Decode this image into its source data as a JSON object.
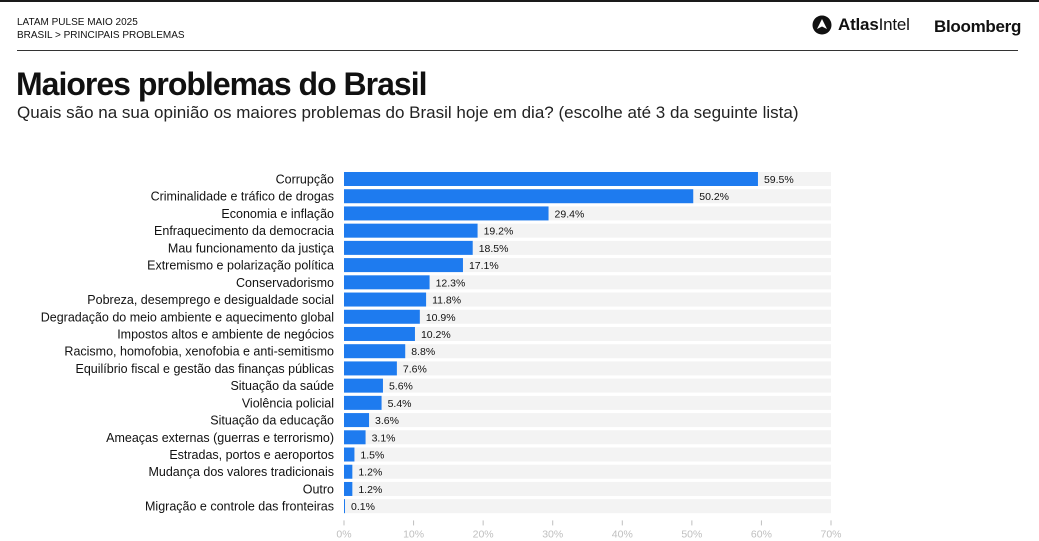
{
  "header": {
    "line1": "LATAM PULSE MAIO 2025",
    "line2": "BRASIL > PRINCIPAIS PROBLEMAS"
  },
  "logos": {
    "atlas_bold": "Atlas",
    "atlas_regular": "Intel",
    "bloomberg": "Bloomberg"
  },
  "title": "Maiores problemas do Brasil",
  "subtitle": "Quais são na sua opinião os maiores problemas do Brasil hoje em dia? (escolhe até 3 da seguinte lista)",
  "colors": {
    "bar": "#1e7bef",
    "track": "#f3f3f3",
    "tick": "#bfbfbf",
    "text": "#111111"
  },
  "chart_data": {
    "type": "bar",
    "orientation": "horizontal",
    "title": "Maiores problemas do Brasil",
    "xlabel": "",
    "ylabel": "",
    "xlim": [
      0,
      70
    ],
    "x_ticks": [
      "0%",
      "10%",
      "20%",
      "30%",
      "40%",
      "50%",
      "60%",
      "70%"
    ],
    "categories": [
      "Corrupção",
      "Criminalidade e tráfico de drogas",
      "Economia e inflação",
      "Enfraquecimento da democracia",
      "Mau funcionamento da justiça",
      "Extremismo e polarização política",
      "Conservadorismo",
      "Pobreza, desemprego e desigualdade social",
      "Degradação do meio ambiente e aquecimento global",
      "Impostos altos e ambiente de negócios",
      "Racismo, homofobia, xenofobia e anti-semitismo",
      "Equilíbrio fiscal e gestão das finanças públicas",
      "Situação da saúde",
      "Violência policial",
      "Situação da educação",
      "Ameaças externas (guerras e terrorismo)",
      "Estradas, portos e aeroportos",
      "Mudança dos valores tradicionais",
      "Outro",
      "Migração e controle das fronteiras"
    ],
    "values": [
      59.5,
      50.2,
      29.4,
      19.2,
      18.5,
      17.1,
      12.3,
      11.8,
      10.9,
      10.2,
      8.8,
      7.6,
      5.6,
      5.4,
      3.6,
      3.1,
      1.5,
      1.2,
      1.2,
      0.1
    ],
    "value_labels": [
      "59.5%",
      "50.2%",
      "29.4%",
      "19.2%",
      "18.5%",
      "17.1%",
      "12.3%",
      "11.8%",
      "10.9%",
      "10.2%",
      "8.8%",
      "7.6%",
      "5.6%",
      "5.4%",
      "3.6%",
      "3.1%",
      "1.5%",
      "1.2%",
      "1.2%",
      "0.1%"
    ]
  }
}
